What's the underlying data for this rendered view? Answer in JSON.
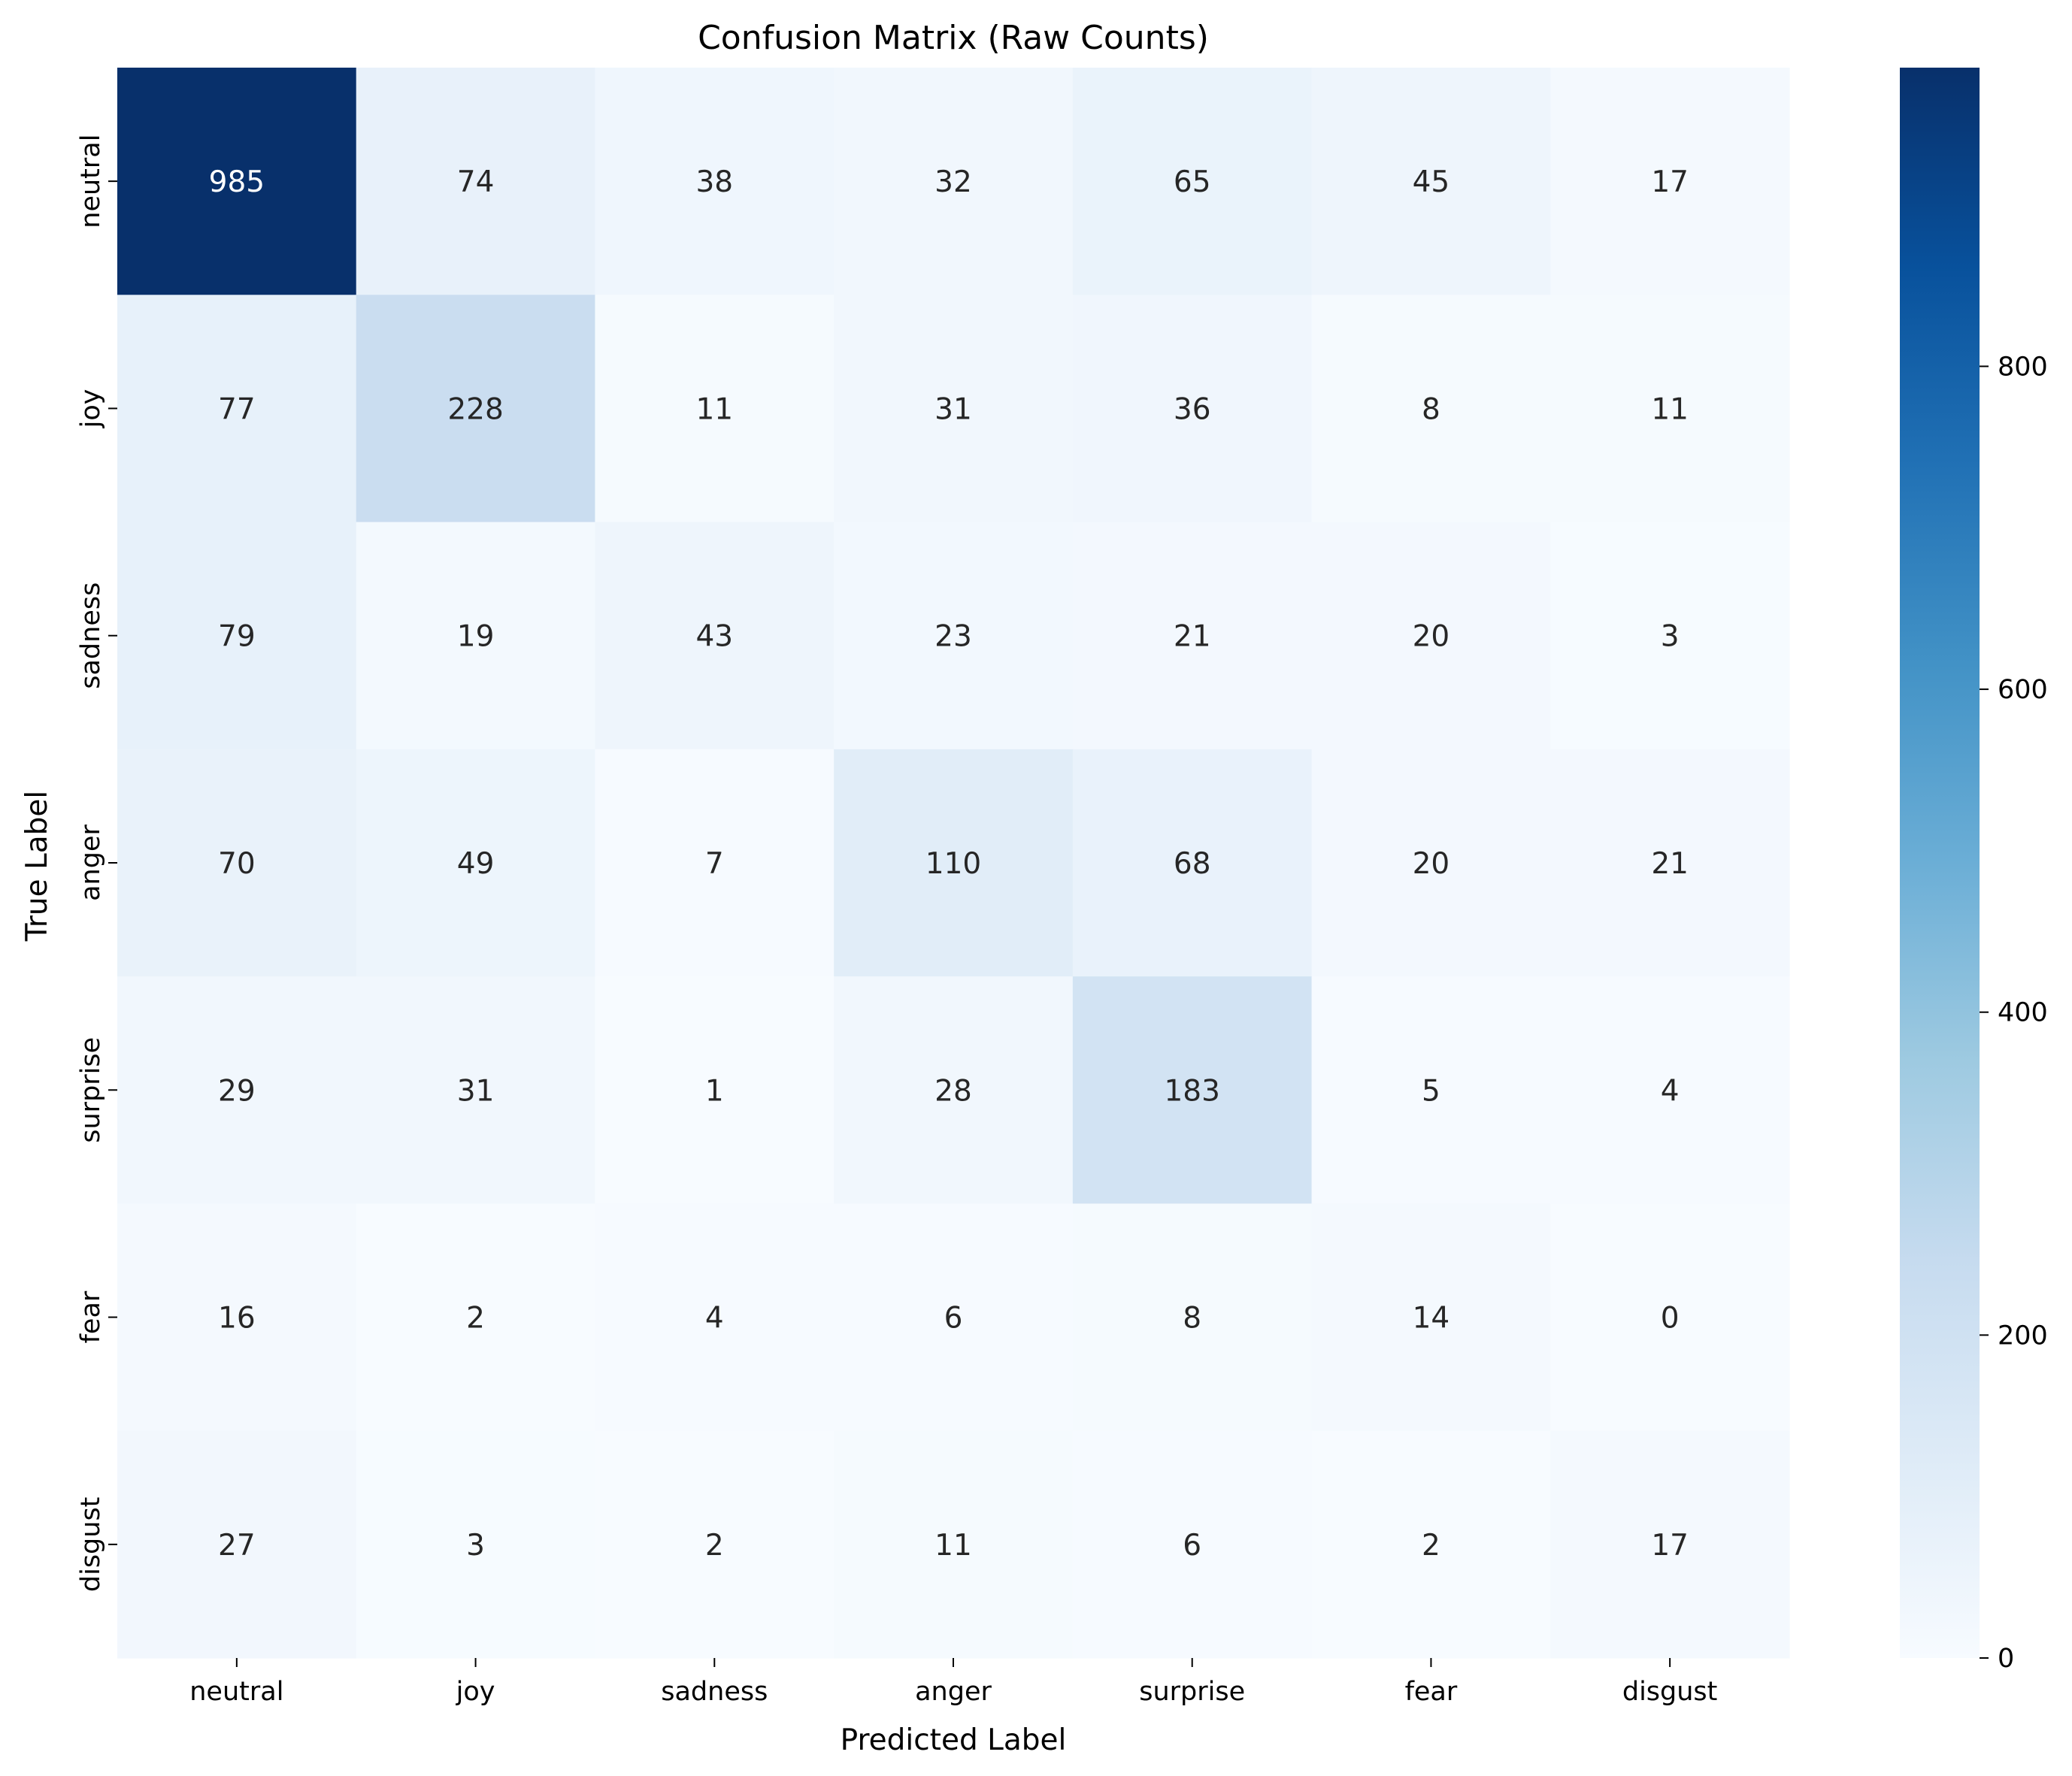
{
  "chart_data": {
    "type": "heatmap",
    "title": "Confusion Matrix (Raw Counts)",
    "xlabel": "Predicted Label",
    "ylabel": "True Label",
    "x_categories": [
      "neutral",
      "joy",
      "sadness",
      "anger",
      "surprise",
      "fear",
      "disgust"
    ],
    "y_categories": [
      "neutral",
      "joy",
      "sadness",
      "anger",
      "surprise",
      "fear",
      "disgust"
    ],
    "values": [
      [
        985,
        74,
        38,
        32,
        65,
        45,
        17
      ],
      [
        77,
        228,
        11,
        31,
        36,
        8,
        11
      ],
      [
        79,
        19,
        43,
        23,
        21,
        20,
        3
      ],
      [
        70,
        49,
        7,
        110,
        68,
        20,
        21
      ],
      [
        29,
        31,
        1,
        28,
        183,
        5,
        4
      ],
      [
        16,
        2,
        4,
        6,
        8,
        14,
        0
      ],
      [
        27,
        3,
        2,
        11,
        6,
        2,
        17
      ]
    ],
    "colormap": "Blues",
    "vmin": 0,
    "vmax": 985,
    "colorbar": {
      "ticks": [
        0,
        200,
        400,
        600,
        800
      ]
    },
    "annotation_colors": {
      "dark_text": "#262626",
      "light_text": "#ffffff"
    }
  }
}
